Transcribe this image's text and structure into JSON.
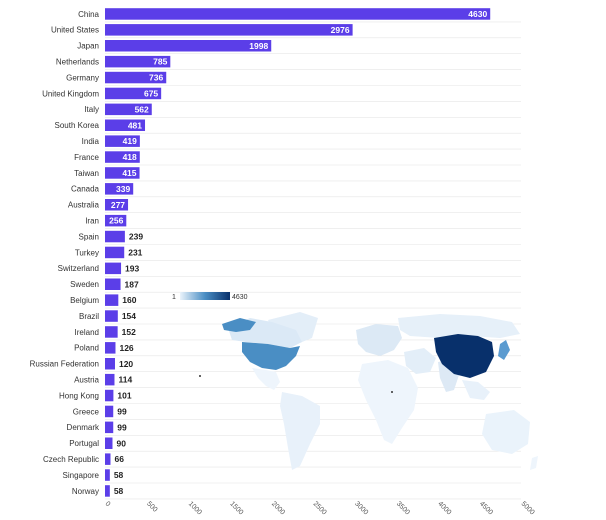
{
  "colors": {
    "bar": "#5b3ee8",
    "map_low": "#eaf3fb",
    "map_high": "#08306b",
    "grid": "#e6e6e6"
  },
  "chart_data": {
    "type": "bar",
    "orientation": "horizontal",
    "title": "",
    "xlabel": "",
    "ylabel": "",
    "categories": [
      "China",
      "United States",
      "Japan",
      "Netherlands",
      "Germany",
      "United Kingdom",
      "Italy",
      "South Korea",
      "India",
      "France",
      "Taiwan",
      "Canada",
      "Australia",
      "Iran",
      "Spain",
      "Turkey",
      "Switzerland",
      "Sweden",
      "Belgium",
      "Brazil",
      "Ireland",
      "Poland",
      "Russian Federation",
      "Austria",
      "Hong Kong",
      "Greece",
      "Denmark",
      "Portugal",
      "Czech Republic",
      "Singapore",
      "Norway"
    ],
    "values": [
      4630,
      2976,
      1998,
      785,
      736,
      675,
      562,
      481,
      419,
      418,
      415,
      339,
      277,
      256,
      239,
      231,
      193,
      187,
      160,
      154,
      152,
      126,
      120,
      114,
      101,
      99,
      99,
      90,
      66,
      58,
      58
    ],
    "xlim": [
      0,
      5000
    ],
    "xticks": [
      0,
      500,
      1000,
      1500,
      2000,
      2500,
      3000,
      3500,
      4000,
      4500,
      5000
    ],
    "grid": "horizontal lines",
    "legend": {
      "type": "color scale",
      "placement": "above map",
      "min_label": "1",
      "max_label": "4630"
    },
    "inset": "choropleth world map shaded by value"
  }
}
